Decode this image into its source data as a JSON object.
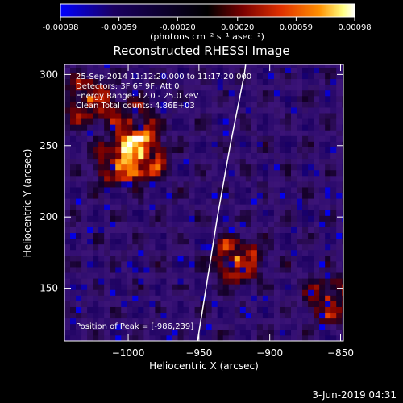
{
  "colorbar": {
    "ticks": [
      "-0.00098",
      "-0.00059",
      "-0.00020",
      "0.00020",
      "0.00059",
      "0.00098"
    ],
    "tick_values": [
      -0.00098,
      -0.00059,
      -0.0002,
      0.0002,
      0.00059,
      0.00098
    ],
    "range": [
      -0.00098,
      0.00098
    ],
    "units_label": "(photons cm⁻² s⁻¹ asec⁻²)",
    "colors": [
      "#0000ff",
      "#1a0060",
      "#000000",
      "#7a0000",
      "#e03000",
      "#ff9000",
      "#ffff80",
      "#ffffff"
    ]
  },
  "chart_data": {
    "type": "heatmap",
    "title": "Reconstructed RHESSI Image",
    "xlabel": "Heliocentric X (arcsec)",
    "ylabel": "Heliocentric Y (arcsec)",
    "xlim": [
      -1045,
      -848
    ],
    "ylim": [
      113,
      307
    ],
    "x_ticks": [
      -1000,
      -950,
      -900,
      -850
    ],
    "y_ticks": [
      150,
      200,
      250,
      300
    ],
    "x_tick_labels": [
      "−1000",
      "−950",
      "−900",
      "−850"
    ],
    "y_tick_labels": [
      "150",
      "200",
      "250",
      "300"
    ],
    "grid": false,
    "info_lines": [
      "25-Sep-2014 11:12:20.000 to 11:17:20.000",
      "Detectors: 3F 6F 9F, Att 0",
      "Energy Range: 12.0 - 25.0 keV",
      "Clean    Total counts: 4.86E+03"
    ],
    "peak_label": "Position of Peak = [-986,239]",
    "peak": [
      -986,
      239
    ],
    "limb_curve": {
      "description": "solar limb",
      "points": [
        [
          -951,
          113
        ],
        [
          -945,
          150
        ],
        [
          -937,
          200
        ],
        [
          -928,
          250
        ],
        [
          -918,
          300
        ],
        [
          -917,
          307
        ]
      ]
    },
    "bright_sources": [
      {
        "x": -1030,
        "y": 280,
        "level": 0.8
      },
      {
        "x": -992,
        "y": 242,
        "level": 1.0
      },
      {
        "x": -1010,
        "y": 235,
        "level": 0.7
      },
      {
        "x": -925,
        "y": 168,
        "level": 0.9
      },
      {
        "x": -860,
        "y": 140,
        "level": 0.7
      },
      {
        "x": -1000,
        "y": 265,
        "level": 0.6
      }
    ]
  },
  "footer": {
    "date": "3-Jun-2019 04:31"
  }
}
